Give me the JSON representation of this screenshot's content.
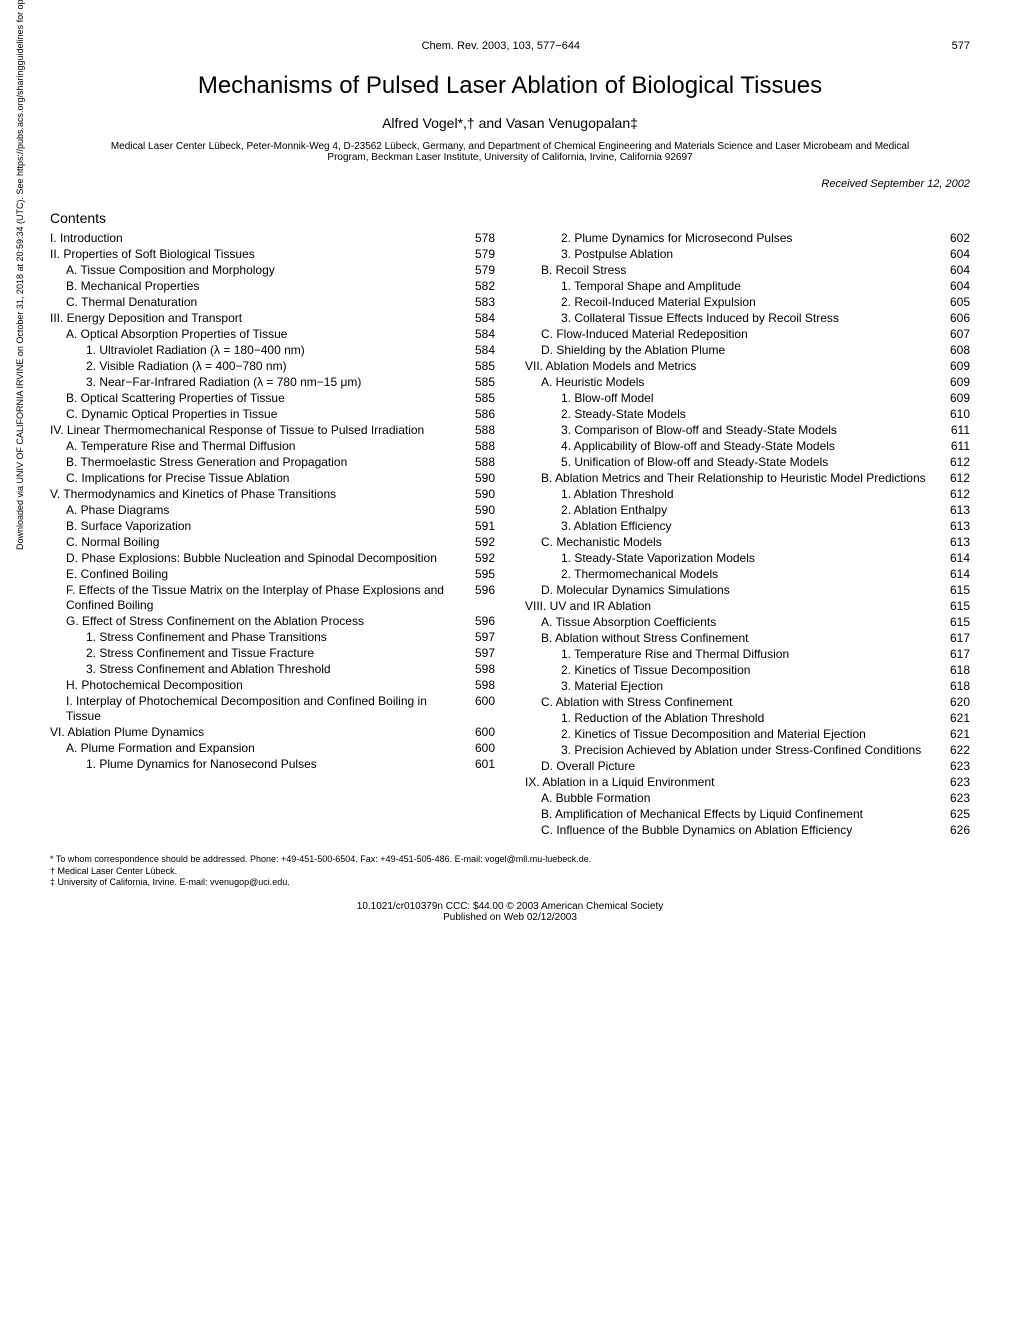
{
  "header": {
    "journal": "Chem. Rev. 2003, 103, 577−644",
    "pagenum": "577"
  },
  "title": "Mechanisms of Pulsed Laser Ablation of Biological Tissues",
  "authors": "Alfred Vogel*,† and Vasan Venugopalan‡",
  "affiliation": "Medical Laser Center Lübeck, Peter-Monnik-Weg 4, D-23562 Lübeck, Germany, and Department of Chemical Engineering and Materials Science and Laser Microbeam and Medical Program, Beckman Laser Institute, University of California, Irvine, California 92697",
  "received": "Received September 12, 2002",
  "contents_heading": "Contents",
  "sidebar": "Downloaded via UNIV OF CALIFORNIA IRVINE on October 31, 2018 at 20:59:34 (UTC). See https://pubs.acs.org/sharingguidelines for options on how to legitimately share published articles.",
  "left_toc": [
    {
      "lvl": 1,
      "label": "I. Introduction",
      "page": "578"
    },
    {
      "lvl": 1,
      "label": "II. Properties of Soft Biological Tissues",
      "page": "579"
    },
    {
      "lvl": 2,
      "label": "A. Tissue Composition and Morphology",
      "page": "579"
    },
    {
      "lvl": 2,
      "label": "B. Mechanical Properties",
      "page": "582"
    },
    {
      "lvl": 2,
      "label": "C. Thermal Denaturation",
      "page": "583"
    },
    {
      "lvl": 1,
      "label": "III. Energy Deposition and Transport",
      "page": "584"
    },
    {
      "lvl": 2,
      "label": "A. Optical Absorption Properties of Tissue",
      "page": "584"
    },
    {
      "lvl": 3,
      "label": "1. Ultraviolet Radiation (λ = 180−400 nm)",
      "page": "584"
    },
    {
      "lvl": 3,
      "label": "2. Visible Radiation (λ = 400−780 nm)",
      "page": "585"
    },
    {
      "lvl": 3,
      "label": "3. Near−Far-Infrared Radiation (λ = 780 nm−15 μm)",
      "page": "585"
    },
    {
      "lvl": 2,
      "label": "B. Optical Scattering Properties of Tissue",
      "page": "585"
    },
    {
      "lvl": 2,
      "label": "C. Dynamic Optical Properties in Tissue",
      "page": "586"
    },
    {
      "lvl": 1,
      "label": "IV. Linear Thermomechanical Response of Tissue to Pulsed Irradiation",
      "page": "588"
    },
    {
      "lvl": 2,
      "label": "A. Temperature Rise and Thermal Diffusion",
      "page": "588"
    },
    {
      "lvl": 2,
      "label": "B. Thermoelastic Stress Generation and Propagation",
      "page": "588"
    },
    {
      "lvl": 2,
      "label": "C. Implications for Precise Tissue Ablation",
      "page": "590"
    },
    {
      "lvl": 1,
      "label": "V. Thermodynamics and Kinetics of Phase Transitions",
      "page": "590"
    },
    {
      "lvl": 2,
      "label": "A. Phase Diagrams",
      "page": "590"
    },
    {
      "lvl": 2,
      "label": "B. Surface Vaporization",
      "page": "591"
    },
    {
      "lvl": 2,
      "label": "C. Normal Boiling",
      "page": "592"
    },
    {
      "lvl": 2,
      "label": "D. Phase Explosions: Bubble Nucleation and Spinodal Decomposition",
      "page": "592"
    },
    {
      "lvl": 2,
      "label": "E. Confined Boiling",
      "page": "595"
    },
    {
      "lvl": 2,
      "label": "F. Effects of the Tissue Matrix on the Interplay of Phase Explosions and Confined Boiling",
      "page": "596"
    },
    {
      "lvl": 2,
      "label": "G. Effect of Stress Confinement on the Ablation Process",
      "page": "596"
    },
    {
      "lvl": 3,
      "label": "1. Stress Confinement and Phase Transitions",
      "page": "597"
    },
    {
      "lvl": 3,
      "label": "2. Stress Confinement and Tissue Fracture",
      "page": "597"
    },
    {
      "lvl": 3,
      "label": "3. Stress Confinement and Ablation Threshold",
      "page": "598"
    },
    {
      "lvl": 2,
      "label": "H. Photochemical Decomposition",
      "page": "598"
    },
    {
      "lvl": 2,
      "label": "I. Interplay of Photochemical Decomposition and Confined Boiling in Tissue",
      "page": "600"
    },
    {
      "lvl": 1,
      "label": "VI. Ablation Plume Dynamics",
      "page": "600"
    },
    {
      "lvl": 2,
      "label": "A. Plume Formation and Expansion",
      "page": "600"
    },
    {
      "lvl": 3,
      "label": "1. Plume Dynamics for Nanosecond Pulses",
      "page": "601"
    }
  ],
  "right_toc": [
    {
      "lvl": 3,
      "label": "2. Plume Dynamics for Microsecond Pulses",
      "page": "602"
    },
    {
      "lvl": 3,
      "label": "3. Postpulse Ablation",
      "page": "604"
    },
    {
      "lvl": 2,
      "label": "B. Recoil Stress",
      "page": "604"
    },
    {
      "lvl": 3,
      "label": "1. Temporal Shape and Amplitude",
      "page": "604"
    },
    {
      "lvl": 3,
      "label": "2. Recoil-Induced Material Expulsion",
      "page": "605"
    },
    {
      "lvl": 3,
      "label": "3. Collateral Tissue Effects Induced by Recoil Stress",
      "page": "606"
    },
    {
      "lvl": 2,
      "label": "C. Flow-Induced Material Redeposition",
      "page": "607"
    },
    {
      "lvl": 2,
      "label": "D. Shielding by the Ablation Plume",
      "page": "608"
    },
    {
      "lvl": 1,
      "label": "VII. Ablation Models and Metrics",
      "page": "609"
    },
    {
      "lvl": 2,
      "label": "A. Heuristic Models",
      "page": "609"
    },
    {
      "lvl": 3,
      "label": "1. Blow-off Model",
      "page": "609"
    },
    {
      "lvl": 3,
      "label": "2. Steady-State Models",
      "page": "610"
    },
    {
      "lvl": 3,
      "label": "3. Comparison of Blow-off and Steady-State Models",
      "page": "611"
    },
    {
      "lvl": 3,
      "label": "4. Applicability of Blow-off and Steady-State Models",
      "page": "611"
    },
    {
      "lvl": 3,
      "label": "5. Unification of Blow-off and Steady-State Models",
      "page": "612"
    },
    {
      "lvl": 2,
      "label": "B. Ablation Metrics and Their Relationship to Heuristic Model Predictions",
      "page": "612"
    },
    {
      "lvl": 3,
      "label": "1. Ablation Threshold",
      "page": "612"
    },
    {
      "lvl": 3,
      "label": "2. Ablation Enthalpy",
      "page": "613"
    },
    {
      "lvl": 3,
      "label": "3. Ablation Efficiency",
      "page": "613"
    },
    {
      "lvl": 2,
      "label": "C. Mechanistic Models",
      "page": "613"
    },
    {
      "lvl": 3,
      "label": "1. Steady-State Vaporization Models",
      "page": "614"
    },
    {
      "lvl": 3,
      "label": "2. Thermomechanical Models",
      "page": "614"
    },
    {
      "lvl": 2,
      "label": "D. Molecular Dynamics Simulations",
      "page": "615"
    },
    {
      "lvl": 1,
      "label": "VIII. UV and IR Ablation",
      "page": "615"
    },
    {
      "lvl": 2,
      "label": "A. Tissue Absorption Coefficients",
      "page": "615"
    },
    {
      "lvl": 2,
      "label": "B. Ablation without Stress Confinement",
      "page": "617"
    },
    {
      "lvl": 3,
      "label": "1. Temperature Rise and Thermal Diffusion",
      "page": "617"
    },
    {
      "lvl": 3,
      "label": "2. Kinetics of Tissue Decomposition",
      "page": "618"
    },
    {
      "lvl": 3,
      "label": "3. Material Ejection",
      "page": "618"
    },
    {
      "lvl": 2,
      "label": "C. Ablation with Stress Confinement",
      "page": "620"
    },
    {
      "lvl": 3,
      "label": "1. Reduction of the Ablation Threshold",
      "page": "621"
    },
    {
      "lvl": 3,
      "label": "2. Kinetics of Tissue Decomposition and Material Ejection",
      "page": "621"
    },
    {
      "lvl": 3,
      "label": "3. Precision Achieved by Ablation under Stress-Confined Conditions",
      "page": "622"
    },
    {
      "lvl": 2,
      "label": "D. Overall Picture",
      "page": "623"
    },
    {
      "lvl": 1,
      "label": "IX. Ablation in a Liquid Environment",
      "page": "623"
    },
    {
      "lvl": 2,
      "label": "A. Bubble Formation",
      "page": "623"
    },
    {
      "lvl": 2,
      "label": "B. Amplification of Mechanical Effects by Liquid Confinement",
      "page": "625"
    },
    {
      "lvl": 2,
      "label": "C. Influence of the Bubble Dynamics on Ablation Efficiency",
      "page": "626"
    }
  ],
  "footnotes": [
    "* To whom correspondence should be addressed. Phone: +49-451-500-6504. Fax: +49-451-505-486. E-mail: vogel@mll.mu-luebeck.de.",
    "† Medical Laser Center Lübeck.",
    "‡ University of California, Irvine. E-mail: vvenugop@uci.edu."
  ],
  "footer": {
    "line1": "10.1021/cr010379n CCC: $44.00   © 2003 American Chemical Society",
    "line2": "Published on Web 02/12/2003"
  }
}
